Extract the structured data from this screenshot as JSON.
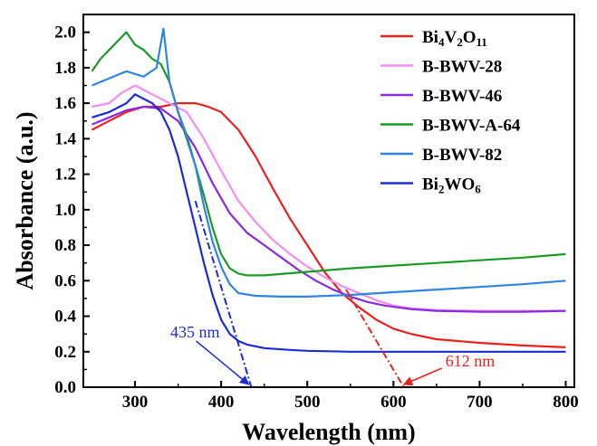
{
  "chart_data": {
    "type": "line",
    "xlabel": "Wavelength (nm)",
    "ylabel": "Absorbance (a.u.)",
    "xlim": [
      240,
      810
    ],
    "ylim": [
      0,
      2.1
    ],
    "xticks": [
      "300",
      "400",
      "500",
      "600",
      "700",
      "800"
    ],
    "yticks": [
      "0.0",
      "0.2",
      "0.4",
      "0.6",
      "0.8",
      "1.0",
      "1.2",
      "1.4",
      "1.6",
      "1.8",
      "2.0"
    ],
    "legend_position": "top-right",
    "series": [
      {
        "name": "Bi4V2O11",
        "label_parts": [
          [
            "Bi",
            ""
          ],
          [
            "4",
            "sub"
          ],
          [
            "V",
            ""
          ],
          [
            "2",
            "sub"
          ],
          [
            "O",
            ""
          ],
          [
            "11",
            "sub"
          ]
        ],
        "color": "#e8221f",
        "points": [
          [
            250,
            1.45
          ],
          [
            270,
            1.5
          ],
          [
            290,
            1.55
          ],
          [
            310,
            1.58
          ],
          [
            330,
            1.58
          ],
          [
            350,
            1.6
          ],
          [
            370,
            1.6
          ],
          [
            385,
            1.58
          ],
          [
            400,
            1.55
          ],
          [
            420,
            1.45
          ],
          [
            440,
            1.3
          ],
          [
            460,
            1.12
          ],
          [
            480,
            0.95
          ],
          [
            500,
            0.8
          ],
          [
            520,
            0.65
          ],
          [
            540,
            0.53
          ],
          [
            560,
            0.45
          ],
          [
            580,
            0.38
          ],
          [
            600,
            0.33
          ],
          [
            620,
            0.3
          ],
          [
            650,
            0.27
          ],
          [
            700,
            0.25
          ],
          [
            750,
            0.235
          ],
          [
            800,
            0.225
          ]
        ]
      },
      {
        "name": "B-BWV-28",
        "label_parts": [
          [
            "B-BWV-28",
            ""
          ]
        ],
        "color": "#f58cf0",
        "points": [
          [
            250,
            1.58
          ],
          [
            270,
            1.6
          ],
          [
            285,
            1.66
          ],
          [
            300,
            1.7
          ],
          [
            320,
            1.65
          ],
          [
            340,
            1.6
          ],
          [
            360,
            1.55
          ],
          [
            380,
            1.4
          ],
          [
            400,
            1.22
          ],
          [
            420,
            1.05
          ],
          [
            440,
            0.93
          ],
          [
            460,
            0.83
          ],
          [
            480,
            0.75
          ],
          [
            500,
            0.68
          ],
          [
            520,
            0.62
          ],
          [
            540,
            0.57
          ],
          [
            560,
            0.53
          ],
          [
            580,
            0.49
          ],
          [
            600,
            0.46
          ],
          [
            620,
            0.445
          ],
          [
            650,
            0.435
          ],
          [
            700,
            0.43
          ],
          [
            750,
            0.43
          ],
          [
            800,
            0.43
          ]
        ]
      },
      {
        "name": "B-BWV-46",
        "label_parts": [
          [
            "B-BWV-46",
            ""
          ]
        ],
        "color": "#8a2be2",
        "points": [
          [
            250,
            1.48
          ],
          [
            270,
            1.52
          ],
          [
            290,
            1.56
          ],
          [
            310,
            1.58
          ],
          [
            330,
            1.57
          ],
          [
            350,
            1.5
          ],
          [
            370,
            1.35
          ],
          [
            390,
            1.15
          ],
          [
            410,
            0.98
          ],
          [
            430,
            0.87
          ],
          [
            450,
            0.8
          ],
          [
            470,
            0.73
          ],
          [
            490,
            0.66
          ],
          [
            510,
            0.6
          ],
          [
            530,
            0.55
          ],
          [
            550,
            0.51
          ],
          [
            570,
            0.48
          ],
          [
            590,
            0.46
          ],
          [
            620,
            0.44
          ],
          [
            650,
            0.43
          ],
          [
            700,
            0.425
          ],
          [
            750,
            0.425
          ],
          [
            800,
            0.43
          ]
        ]
      },
      {
        "name": "B-BWV-A-64",
        "label_parts": [
          [
            "B-BWV-A-64",
            ""
          ]
        ],
        "color": "#1a9a26",
        "points": [
          [
            250,
            1.78
          ],
          [
            260,
            1.85
          ],
          [
            270,
            1.9
          ],
          [
            280,
            1.95
          ],
          [
            290,
            2.0
          ],
          [
            300,
            1.93
          ],
          [
            310,
            1.9
          ],
          [
            320,
            1.85
          ],
          [
            330,
            1.82
          ],
          [
            340,
            1.72
          ],
          [
            350,
            1.55
          ],
          [
            360,
            1.4
          ],
          [
            370,
            1.25
          ],
          [
            380,
            1.08
          ],
          [
            390,
            0.9
          ],
          [
            400,
            0.75
          ],
          [
            410,
            0.67
          ],
          [
            420,
            0.64
          ],
          [
            430,
            0.63
          ],
          [
            450,
            0.63
          ],
          [
            500,
            0.65
          ],
          [
            550,
            0.67
          ],
          [
            600,
            0.685
          ],
          [
            650,
            0.7
          ],
          [
            700,
            0.715
          ],
          [
            750,
            0.73
          ],
          [
            800,
            0.75
          ]
        ]
      },
      {
        "name": "B-BWV-82",
        "label_parts": [
          [
            "B-BWV-82",
            ""
          ]
        ],
        "color": "#2e86e0",
        "points": [
          [
            250,
            1.7
          ],
          [
            270,
            1.74
          ],
          [
            290,
            1.78
          ],
          [
            310,
            1.75
          ],
          [
            325,
            1.8
          ],
          [
            333,
            2.02
          ],
          [
            340,
            1.72
          ],
          [
            350,
            1.55
          ],
          [
            360,
            1.42
          ],
          [
            370,
            1.25
          ],
          [
            380,
            1.02
          ],
          [
            390,
            0.82
          ],
          [
            400,
            0.68
          ],
          [
            410,
            0.58
          ],
          [
            420,
            0.53
          ],
          [
            440,
            0.515
          ],
          [
            470,
            0.51
          ],
          [
            500,
            0.51
          ],
          [
            550,
            0.52
          ],
          [
            600,
            0.535
          ],
          [
            650,
            0.55
          ],
          [
            700,
            0.565
          ],
          [
            750,
            0.58
          ],
          [
            800,
            0.6
          ]
        ]
      },
      {
        "name": "Bi2WO6",
        "label_parts": [
          [
            "Bi",
            ""
          ],
          [
            "2",
            "sub"
          ],
          [
            "WO",
            ""
          ],
          [
            "6",
            "sub"
          ]
        ],
        "color": "#1c2bd6",
        "points": [
          [
            250,
            1.52
          ],
          [
            270,
            1.55
          ],
          [
            290,
            1.6
          ],
          [
            300,
            1.65
          ],
          [
            320,
            1.6
          ],
          [
            330,
            1.55
          ],
          [
            340,
            1.45
          ],
          [
            350,
            1.3
          ],
          [
            360,
            1.1
          ],
          [
            370,
            0.9
          ],
          [
            380,
            0.7
          ],
          [
            390,
            0.52
          ],
          [
            400,
            0.38
          ],
          [
            410,
            0.3
          ],
          [
            420,
            0.26
          ],
          [
            430,
            0.24
          ],
          [
            450,
            0.22
          ],
          [
            480,
            0.21
          ],
          [
            500,
            0.205
          ],
          [
            550,
            0.2
          ],
          [
            600,
            0.2
          ],
          [
            700,
            0.2
          ],
          [
            800,
            0.2
          ]
        ]
      }
    ],
    "extrapolations": [
      {
        "name": "Bi2WO6 tangent",
        "color": "#1c2bd6",
        "x1": 370,
        "y1": 1.05,
        "x2": 435,
        "y2": 0.0
      },
      {
        "name": "Bi4V2O11 tangent",
        "color": "#e8221f",
        "x1": 545,
        "y1": 0.55,
        "x2": 612,
        "y2": 0.0
      }
    ],
    "annotations": [
      {
        "text": "435 nm",
        "color": "#1c2bd6",
        "target_x": 432,
        "target_y": 0.0,
        "anchor": "upper-left"
      },
      {
        "text": "612 nm",
        "color": "#e8221f",
        "target_x": 612,
        "target_y": 0.0,
        "anchor": "lower-right"
      }
    ]
  }
}
